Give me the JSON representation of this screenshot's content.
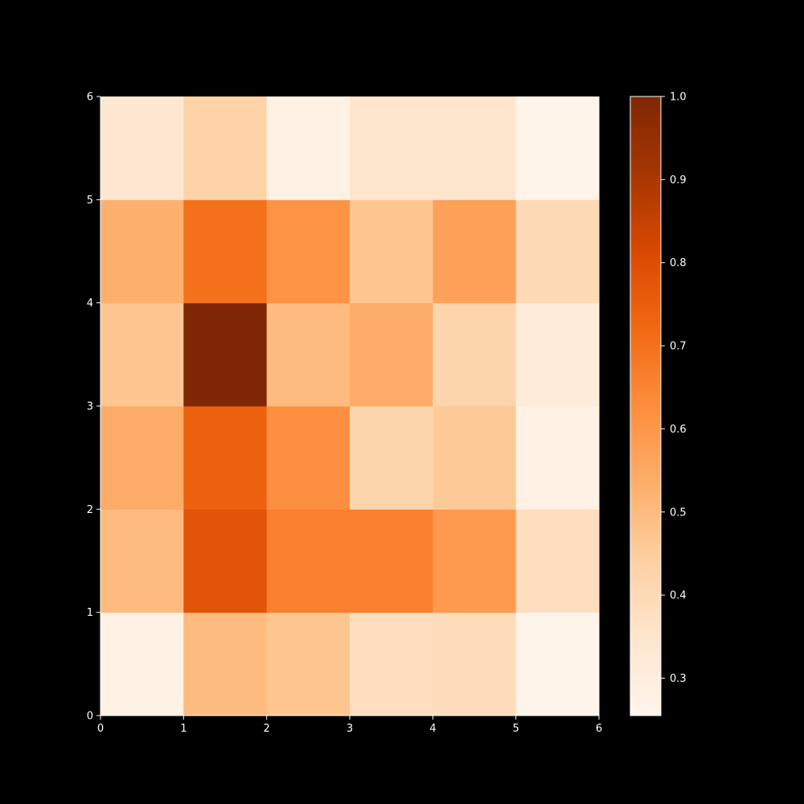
{
  "chart_data": {
    "type": "heatmap",
    "title": "",
    "xlabel": "",
    "ylabel": "",
    "xlim": [
      0,
      6
    ],
    "ylim": [
      0,
      6
    ],
    "x_ticks": [
      "0",
      "1",
      "2",
      "3",
      "4",
      "5",
      "6"
    ],
    "y_ticks": [
      "0",
      "1",
      "2",
      "3",
      "4",
      "5",
      "6"
    ],
    "colormap": "Oranges",
    "background": "#000000",
    "grid": false,
    "rows_bottom_to_top": [
      [
        0.28,
        0.5,
        0.47,
        0.38,
        0.39,
        0.26
      ],
      [
        0.5,
        0.78,
        0.66,
        0.66,
        0.59,
        0.38
      ],
      [
        0.54,
        0.74,
        0.62,
        0.42,
        0.46,
        0.28
      ],
      [
        0.47,
        1.0,
        0.5,
        0.54,
        0.42,
        0.31
      ],
      [
        0.53,
        0.7,
        0.61,
        0.47,
        0.57,
        0.4
      ],
      [
        0.34,
        0.43,
        0.28,
        0.35,
        0.35,
        0.26
      ]
    ],
    "colorbar": {
      "min": 0.255,
      "max": 1.0,
      "ticks": [
        "0.3",
        "0.4",
        "0.5",
        "0.6",
        "0.7",
        "0.8",
        "0.9",
        "1.0"
      ]
    }
  }
}
